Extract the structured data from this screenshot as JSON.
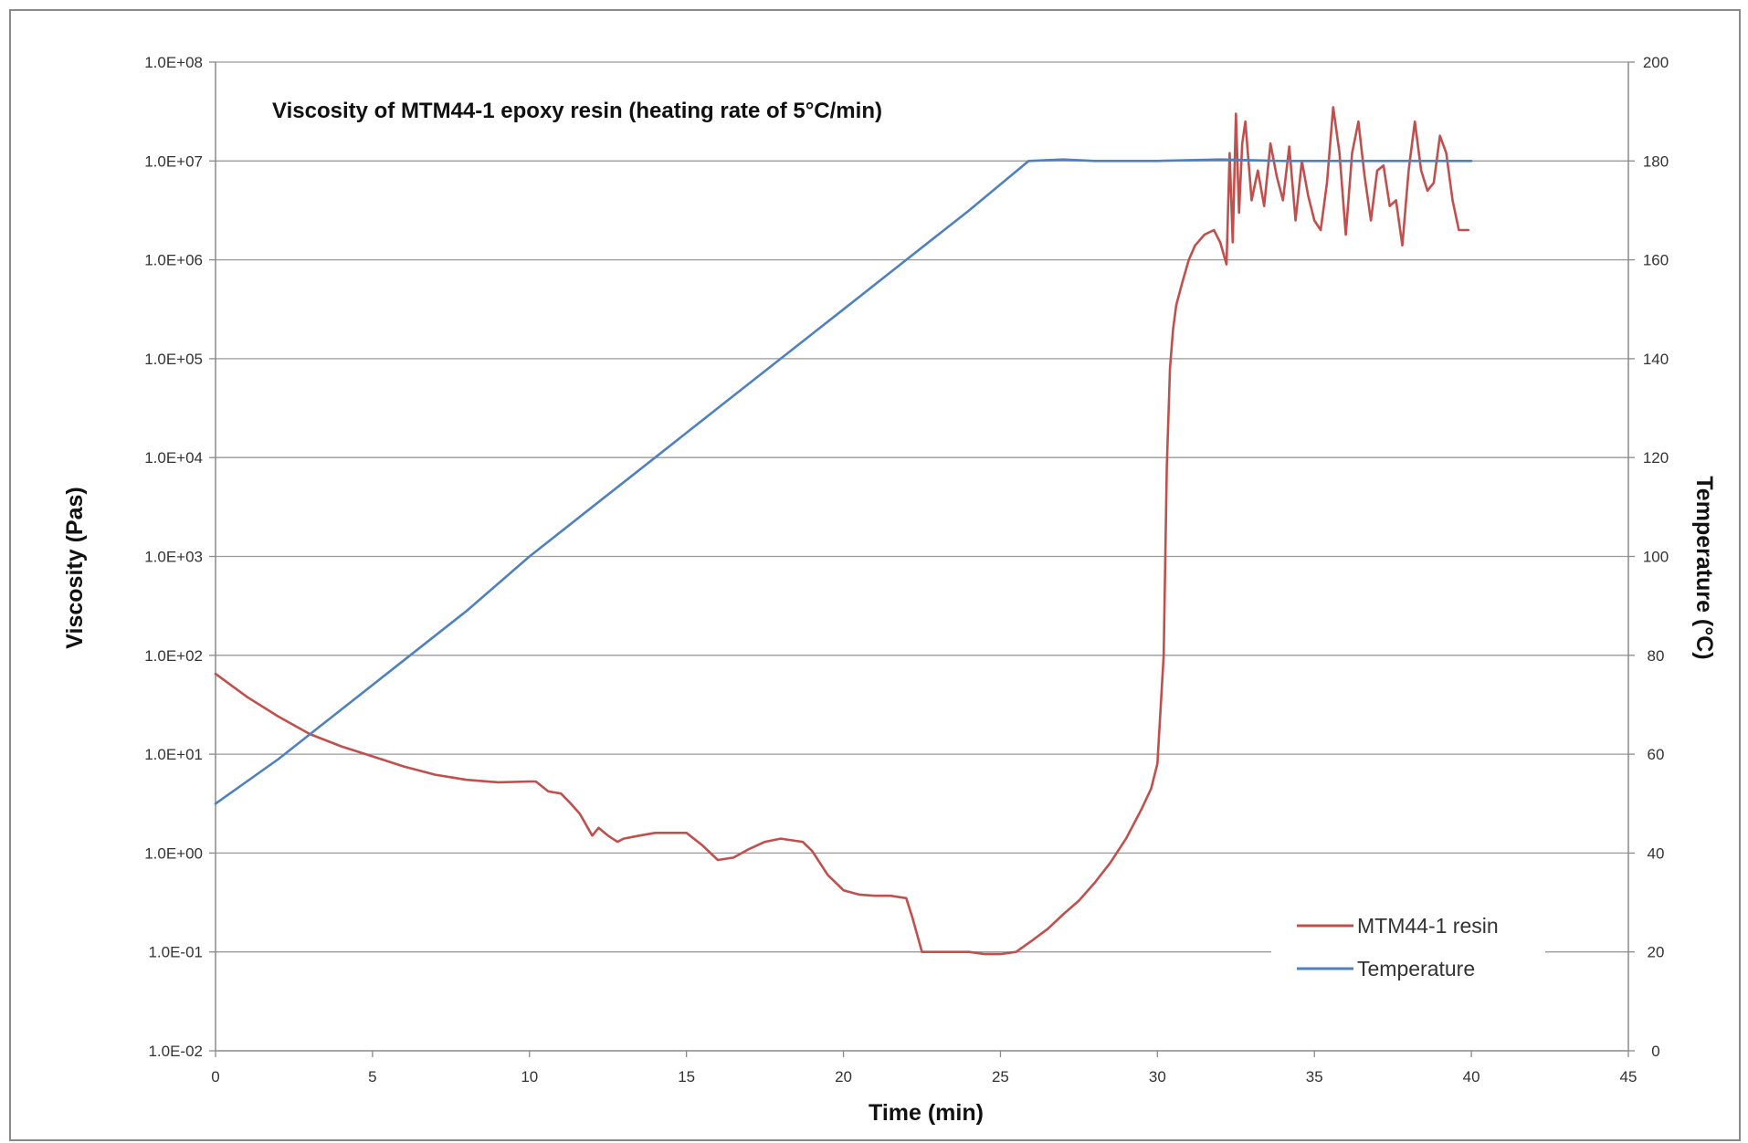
{
  "chart_data": {
    "type": "line",
    "title": "Viscosity of MTM44-1 epoxy resin (heating rate of 5°C/min)",
    "xlabel": "Time (min)",
    "ylabel": "Viscosity (Pas)",
    "y2label": "Temperature (°C)",
    "xlim": [
      0,
      45
    ],
    "x_ticks": [
      "0",
      "5",
      "10",
      "15",
      "20",
      "25",
      "30",
      "35",
      "40",
      "45"
    ],
    "ylim_log": [
      0.01,
      100000000
    ],
    "y_scale": "log",
    "y_ticks": [
      "1.0E-02",
      "1.0E-01",
      "1.0E+00",
      "1.0E+01",
      "1.0E+02",
      "1.0E+03",
      "1.0E+04",
      "1.0E+05",
      "1.0E+06",
      "1.0E+07",
      "1.0E+08"
    ],
    "y2lim": [
      0,
      200
    ],
    "y2_ticks": [
      "0",
      "20",
      "40",
      "60",
      "80",
      "100",
      "120",
      "140",
      "160",
      "180",
      "200"
    ],
    "grid": "horizontal",
    "legend_position": "lower-right",
    "series": [
      {
        "name": "MTM44-1 resin",
        "axis": "left",
        "color": "#c0504d",
        "x": [
          0,
          1,
          2,
          3,
          4,
          5,
          6,
          7,
          8,
          9,
          10,
          10.2,
          10.6,
          11,
          11.3,
          11.6,
          12,
          12.2,
          12.5,
          12.8,
          13,
          13.5,
          14,
          14.5,
          15,
          15.5,
          16,
          16.5,
          17,
          17.5,
          18,
          18.7,
          19,
          19.5,
          20,
          20.5,
          21,
          21.5,
          22,
          22.2,
          22.5,
          23,
          23.5,
          24,
          24.5,
          25,
          25.5,
          26,
          26.5,
          27,
          27.5,
          28,
          28.5,
          29,
          29.5,
          29.8,
          30,
          30.2,
          30.3,
          30.4,
          30.5,
          30.6,
          30.8,
          31,
          31.2,
          31.5,
          31.8,
          32,
          32.2,
          32.3,
          32.4,
          32.5,
          32.6,
          32.7,
          32.8,
          33,
          33.2,
          33.4,
          33.6,
          33.8,
          34,
          34.2,
          34.4,
          34.6,
          34.8,
          35,
          35.2,
          35.4,
          35.6,
          35.8,
          36,
          36.2,
          36.4,
          36.6,
          36.8,
          37,
          37.2,
          37.4,
          37.6,
          37.8,
          38,
          38.2,
          38.4,
          38.6,
          38.8,
          39,
          39.2,
          39.4,
          39.6,
          39.8,
          39.9
        ],
        "values": [
          65,
          38,
          24,
          16,
          12,
          9.5,
          7.5,
          6.2,
          5.5,
          5.2,
          5.3,
          5.3,
          4.2,
          4,
          3.2,
          2.5,
          1.5,
          1.8,
          1.5,
          1.3,
          1.4,
          1.5,
          1.6,
          1.6,
          1.6,
          1.2,
          0.85,
          0.9,
          1.1,
          1.3,
          1.4,
          1.3,
          1.05,
          0.6,
          0.42,
          0.38,
          0.37,
          0.37,
          0.35,
          0.22,
          0.1,
          0.1,
          0.1,
          0.1,
          0.095,
          0.095,
          0.1,
          0.13,
          0.17,
          0.24,
          0.33,
          0.5,
          0.8,
          1.4,
          2.8,
          4.5,
          8,
          100,
          8000,
          80000,
          200000,
          350000,
          600000,
          1000000,
          1400000,
          1800000,
          2000000,
          1500000,
          900000,
          12000000,
          1500000,
          30000000,
          3000000,
          15000000,
          25000000,
          4000000,
          8000000,
          3500000,
          15000000,
          7000000,
          4000000,
          14000000,
          2500000,
          10000000,
          4500000,
          2500000,
          2000000,
          6000000,
          35000000,
          12000000,
          1800000,
          12000000,
          25000000,
          7000000,
          2500000,
          8000000,
          9000000,
          3500000,
          4000000,
          1400000,
          8000000,
          25000000,
          8000000,
          5000000,
          6000000,
          18000000,
          12000000,
          4000000,
          2000000,
          2000000,
          2000000
        ],
        "values_note_unused": ""
      },
      {
        "name": "Temperature",
        "axis": "right",
        "color": "#4f81bd",
        "x": [
          0,
          2,
          4,
          6,
          8,
          10,
          12,
          14,
          16,
          18,
          20,
          22,
          24,
          25.9,
          27,
          28,
          30,
          32,
          34,
          36,
          38,
          40
        ],
        "values": [
          50,
          59,
          69,
          79,
          89,
          100,
          110,
          120,
          130,
          140,
          150,
          160,
          170,
          180,
          180.3,
          180,
          180,
          180.3,
          180,
          180,
          180,
          180
        ]
      }
    ]
  }
}
